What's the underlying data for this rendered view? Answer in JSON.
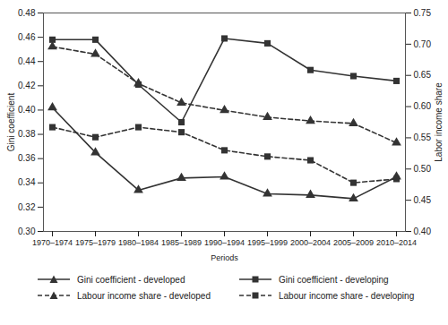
{
  "chart_data": {
    "type": "line",
    "x_label": "Periods",
    "y_label": "Gini coefficient",
    "y2_label": "Labor income share",
    "categories": [
      "1970–1974",
      "1975–1979",
      "1980–1984",
      "1985–1989",
      "1990–1994",
      "1995–1999",
      "2000–2004",
      "2005–2009",
      "2010–2014"
    ],
    "ylim": [
      0.3,
      0.48
    ],
    "yticks": [
      {
        "value": 0.3,
        "label": "0.30"
      },
      0.32,
      0.34,
      0.36,
      0.38,
      {
        "value": 0.4,
        "label": "0.40"
      },
      0.42,
      0.44,
      0.46,
      0.48
    ],
    "y2lim": [
      0.4,
      0.75
    ],
    "y2ticks": [
      {
        "value": 0.4,
        "label": "0.40"
      },
      0.45,
      {
        "value": 0.5,
        "label": "0.50"
      },
      0.55,
      {
        "value": 0.6,
        "label": "0.60"
      },
      0.65,
      {
        "value": 0.7,
        "label": "0.70"
      },
      0.75
    ],
    "grid": false,
    "legend": "bottom",
    "series": [
      {
        "name": "Gini coefficient - developed",
        "color": "#333333",
        "marker": "triangle",
        "line_style": "solid",
        "values": [
          0.402,
          0.365,
          0.334,
          0.344,
          0.345,
          0.331,
          0.33,
          0.327,
          0.345
        ]
      },
      {
        "name": "Gini coefficient - developing",
        "color": "#333333",
        "marker": "square",
        "line_style": "solid",
        "values": [
          0.458,
          0.458,
          0.421,
          0.39,
          0.459,
          0.455,
          0.433,
          0.428,
          0.424
        ]
      },
      {
        "name": "Labour income share - developed",
        "color": "#333333",
        "marker": "triangle",
        "line_style": "dashed",
        "axis": "y2",
        "values": [
          0.696,
          0.684,
          0.637,
          0.606,
          0.594,
          0.583,
          0.577,
          0.573,
          0.542
        ]
      },
      {
        "name": "Labour income share - developing",
        "color": "#333333",
        "marker": "square",
        "line_style": "dashed",
        "axis": "y2",
        "values": [
          0.567,
          0.551,
          0.567,
          0.559,
          0.53,
          0.52,
          0.514,
          0.478,
          0.484
        ]
      }
    ]
  }
}
